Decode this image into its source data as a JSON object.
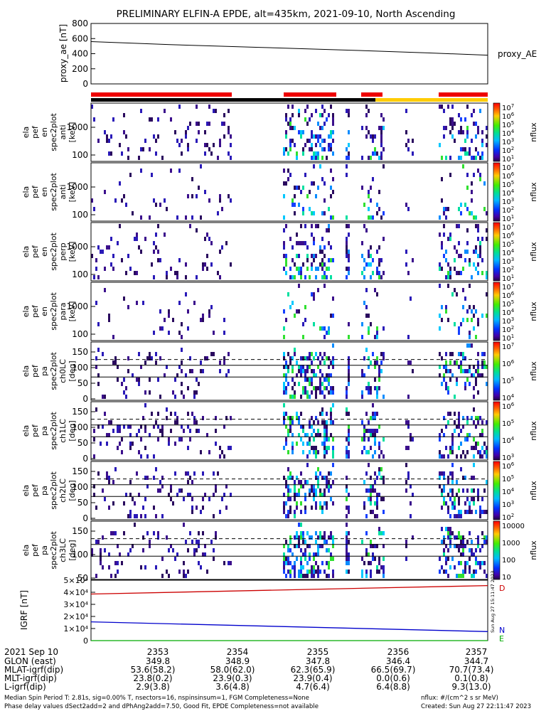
{
  "title": "PRELIMINARY ELFIN-A EPDE, alt=435km, 2021-09-10, North Ascending",
  "chart_data": [
    {
      "type": "line",
      "panel": "proxy_ae",
      "ylabel": "proxy_ae [nT]",
      "ylim": [
        0,
        800
      ],
      "yticks": [
        "800",
        "600",
        "400",
        "200",
        "0"
      ],
      "ytick_values": [
        800,
        600,
        400,
        200,
        0
      ],
      "right_label": "proxy_AE",
      "x": [
        2352.58,
        2353.5,
        2354.5,
        2355.5,
        2356.5,
        2357.2
      ],
      "values": [
        560,
        520,
        485,
        450,
        410,
        380
      ]
    },
    {
      "type": "heatmap",
      "panel": "ela pef en spec2plot anti",
      "ylabel_lines": [
        "ela",
        "pef",
        "en",
        "spec2plot",
        "anti",
        "[keV]"
      ],
      "yticks": [
        "1000",
        "100"
      ],
      "colorbar_label": "nflux",
      "colorbar_exponents": [
        "7",
        "6",
        "5",
        "4",
        "3",
        "2",
        "1"
      ]
    },
    {
      "type": "heatmap",
      "panel": "ela pef en spec2plot anti",
      "ylabel_lines": [
        "ela",
        "pef",
        "en",
        "spec2plot",
        "anti",
        "[keV]"
      ],
      "yticks": [
        "1000",
        "100"
      ],
      "colorbar_label": "nflux",
      "colorbar_exponents": [
        "7",
        "6",
        "5",
        "4",
        "3",
        "2",
        "1"
      ]
    },
    {
      "type": "heatmap",
      "panel": "ela pef en spec2plot perp",
      "ylabel_lines": [
        "ela",
        "pef",
        "en",
        "spec2plot",
        "perp",
        "[keV]"
      ],
      "yticks": [
        "1000",
        "100"
      ],
      "colorbar_label": "nflux",
      "colorbar_exponents": [
        "7",
        "6",
        "5",
        "4",
        "3",
        "2",
        "1"
      ]
    },
    {
      "type": "heatmap",
      "panel": "ela pef en spec2plot para",
      "ylabel_lines": [
        "ela",
        "pef",
        "en",
        "spec2plot",
        "para",
        "[keV]"
      ],
      "yticks": [
        "1000",
        "100"
      ],
      "colorbar_label": "nflux",
      "colorbar_exponents": [
        "7",
        "6",
        "5",
        "4",
        "3",
        "2",
        "1"
      ]
    },
    {
      "type": "heatmap",
      "panel": "ela pef pa spec2plot ch0LC",
      "ylabel_lines": [
        "ela",
        "pef",
        "pa",
        "spec2plot",
        "ch0LC",
        "[deg]"
      ],
      "yticks": [
        "150",
        "100",
        "50",
        "0"
      ],
      "colorbar_label": "nflux",
      "colorbar_exponents": [
        "7",
        "6",
        "5",
        "4"
      ]
    },
    {
      "type": "heatmap",
      "panel": "ela pef pa spec2plot ch1LC",
      "ylabel_lines": [
        "ela",
        "pef",
        "pa",
        "spec2plot",
        "ch1LC",
        "[deg]"
      ],
      "yticks": [
        "150",
        "100",
        "50",
        "0"
      ],
      "colorbar_label": "nflux",
      "colorbar_exponents": [
        "6",
        "5",
        "4",
        "3"
      ]
    },
    {
      "type": "heatmap",
      "panel": "ela pef pa spec2plot ch2LC",
      "ylabel_lines": [
        "ela",
        "pef",
        "pa",
        "spec2plot",
        "ch2LC",
        "[deg]"
      ],
      "yticks": [
        "150",
        "100",
        "50",
        "0"
      ],
      "colorbar_label": "nflux",
      "colorbar_exponents": [
        "6",
        "5",
        "4",
        "3",
        "2"
      ]
    },
    {
      "type": "heatmap",
      "panel": "ela pef pa spec2plot ch3LC",
      "ylabel_lines": [
        "ela",
        "pef",
        "pa",
        "spec2plot",
        "ch3LC",
        "[deg]"
      ],
      "yticks": [
        "150",
        "100",
        "50"
      ],
      "colorbar_label": "nflux",
      "colorbar_ticks": [
        "10000",
        "1000",
        "100",
        "10"
      ]
    },
    {
      "type": "line",
      "panel": "IGRF",
      "ylabel": "IGRF [nT]",
      "ylim": [
        0,
        50000
      ],
      "yticks": [
        "5×10⁴",
        "4×10⁴",
        "3×10⁴",
        "2×10⁴",
        "1×10⁴",
        "0"
      ],
      "ytick_values": [
        50000,
        40000,
        30000,
        20000,
        10000,
        0
      ],
      "x": [
        2352.58,
        2357.2
      ],
      "series": [
        {
          "name": "D",
          "color": "#cc0000",
          "values": [
            38500,
            45500
          ]
        },
        {
          "name": "N",
          "color": "#0000cc",
          "values": [
            15500,
            7500
          ]
        },
        {
          "name": "E",
          "color": "#00aa00",
          "values": [
            0,
            0
          ]
        }
      ],
      "vertical_label": "Sun Aug 27 15:11:47 2023"
    }
  ],
  "ephemeris": {
    "date": "2021 Sep 10",
    "times": [
      "2353",
      "2354",
      "2355",
      "2356",
      "2357"
    ],
    "rows": [
      {
        "label": "GLON (east)",
        "values": [
          "349.8",
          "348.9",
          "347.8",
          "346.4",
          "344.7"
        ]
      },
      {
        "label": "MLAT-igrf(dip)",
        "values": [
          "53.6(58.2)",
          "58.0(62.0)",
          "62.3(65.9)",
          "66.5(69.7)",
          "70.7(73.4)"
        ]
      },
      {
        "label": "MLT-igrf(dip)",
        "values": [
          "23.8(0.2)",
          "23.9(0.3)",
          "23.9(0.4)",
          "0.0(0.6)",
          "0.1(0.8)"
        ]
      },
      {
        "label": "L-igrf(dip)",
        "values": [
          "2.9(3.8)",
          "3.6(4.8)",
          "4.7(6.4)",
          "6.4(8.8)",
          "9.3(13.0)"
        ]
      }
    ]
  },
  "footer": {
    "line1": "Median Spin Period T: 2.81s, sig=0.00% T, nsectors=16, nspinsinsum=1, FGM Completeness=None",
    "line2": "Phase delay values dSect2add=2 and dPhAng2add=7.50, Good Fit, EPDE Completeness=not available",
    "units": "nflux: #/(cm^2 s sr MeV)",
    "created": "Created: Sun Aug 27 22:11:47 2023"
  },
  "colors": {
    "bar_red": "#ee0000",
    "bar_black": "#000000",
    "bar_yellow": "#ffcc00"
  }
}
